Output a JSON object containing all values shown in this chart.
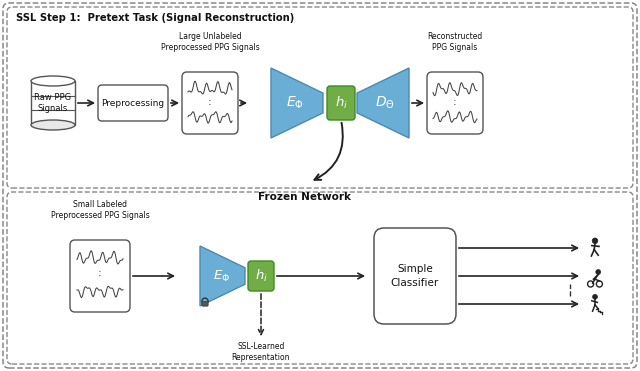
{
  "fig_width": 6.4,
  "fig_height": 3.71,
  "dpi": 100,
  "bg_color": "#ffffff",
  "encoder_color": "#6aaed6",
  "decoder_color": "#6aaed6",
  "hi_color": "#70AD47",
  "top_panel_label": "SSL Step 1:  Pretext Task (Signal Reconstruction)",
  "frozen_label": "Frozen Network",
  "large_unlabeled_label": "Large Unlabeled\nPreprocessed PPG Signals",
  "reconstructed_label": "Reconstructed\nPPG Signals",
  "small_labeled_label": "Small Labeled\nPreprocessed PPG Signals",
  "ssl_repr_label": "SSL-Learned\nRepresentation",
  "raw_ppg_label": "Raw PPG\nSignals",
  "preprocessing_label": "Preprocessing",
  "simple_classifier_label": "Simple\nClassifier"
}
